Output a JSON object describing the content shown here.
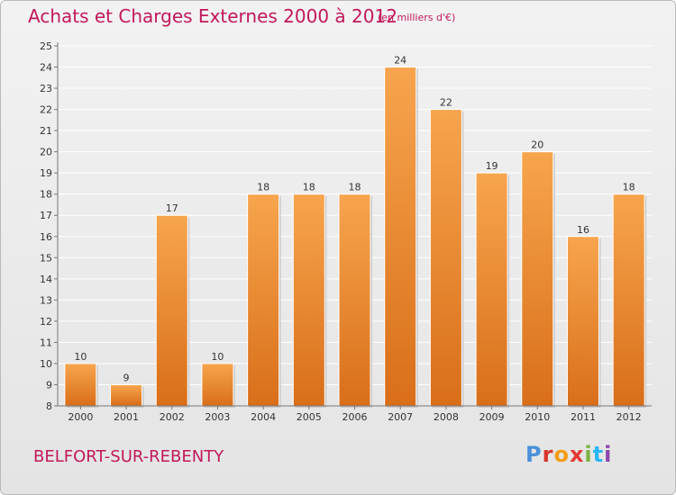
{
  "header": {
    "title": "Achats et Charges Externes 2000 à 2012",
    "subtitle": "(en milliers d'€)"
  },
  "footer": {
    "place": "BELFORT-SUR-REBENTY",
    "logo": "Proxiti"
  },
  "colors": {
    "title": "#c2185b",
    "bar_light": "#f7a54e",
    "bar_dark": "#d96e19",
    "logo_letters": [
      "#4a90d9",
      "#d9342b",
      "#f39c12",
      "#e53935",
      "#7cb342",
      "#29b6f6",
      "#8e44ad"
    ]
  },
  "chart_data": {
    "type": "bar",
    "categories": [
      "2000",
      "2001",
      "2002",
      "2003",
      "2004",
      "2005",
      "2006",
      "2007",
      "2008",
      "2009",
      "2010",
      "2011",
      "2012"
    ],
    "values": [
      10,
      9,
      17,
      10,
      18,
      18,
      18,
      24,
      22,
      19,
      20,
      16,
      18
    ],
    "ylim": [
      8,
      25
    ],
    "yticks": [
      8,
      9,
      10,
      11,
      12,
      13,
      14,
      15,
      16,
      17,
      18,
      19,
      20,
      21,
      22,
      23,
      24,
      25
    ],
    "grid": true,
    "legend": "none"
  }
}
